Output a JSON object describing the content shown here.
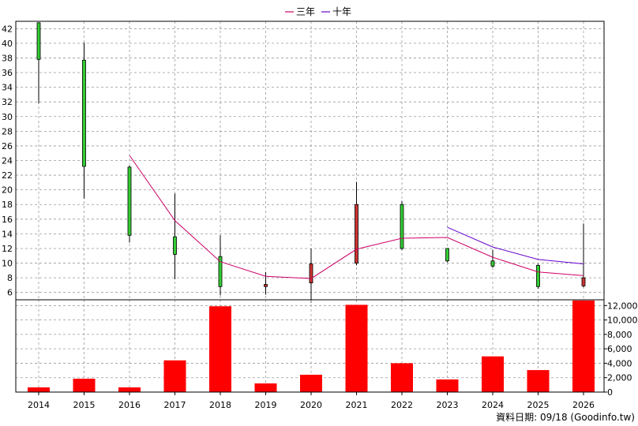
{
  "chart_data": [
    {
      "type": "candlestick",
      "legend": [
        {
          "label": "三年",
          "color": "#cc0066"
        },
        {
          "label": "十年",
          "color": "#6600cc"
        }
      ],
      "legend_position": "top-center",
      "categories": [
        "2014",
        "2015",
        "2016",
        "2017",
        "2018",
        "2019",
        "2020",
        "2021",
        "2022",
        "2023",
        "2024",
        "2025",
        "2026"
      ],
      "ylim": [
        5,
        43
      ],
      "yticks": [
        6,
        8,
        10,
        12,
        14,
        16,
        18,
        20,
        22,
        24,
        26,
        28,
        30,
        32,
        34,
        36,
        38,
        40,
        42
      ],
      "grid": true,
      "up_color": "#cc3333",
      "down_color": "#33cc33",
      "candles": [
        {
          "year": "2014",
          "open": 42.8,
          "close": 37.8,
          "high": 42.8,
          "low": 31.8
        },
        {
          "year": "2015",
          "open": 37.7,
          "close": 23.2,
          "high": 40.1,
          "low": 18.8
        },
        {
          "year": "2016",
          "open": 23.1,
          "close": 13.8,
          "high": 23.3,
          "low": 12.8
        },
        {
          "year": "2017",
          "open": 13.6,
          "close": 11.2,
          "high": 19.5,
          "low": 7.8
        },
        {
          "year": "2018",
          "open": 10.9,
          "close": 6.8,
          "high": 13.8,
          "low": 5.6
        },
        {
          "year": "2019",
          "open": 6.8,
          "close": 7.1,
          "high": 8.8,
          "low": 5.7
        },
        {
          "year": "2020",
          "open": 7.3,
          "close": 9.9,
          "high": 12.0,
          "low": 4.6
        },
        {
          "year": "2021",
          "open": 10.0,
          "close": 18.0,
          "high": 21.1,
          "low": 9.7
        },
        {
          "year": "2022",
          "open": 18.0,
          "close": 12.0,
          "high": 18.5,
          "low": 11.8
        },
        {
          "year": "2023",
          "open": 12.0,
          "close": 10.3,
          "high": 12.0,
          "low": 10.1
        },
        {
          "year": "2024",
          "open": 10.3,
          "close": 9.6,
          "high": 11.8,
          "low": 9.4
        },
        {
          "year": "2025",
          "open": 9.7,
          "close": 6.8,
          "high": 9.9,
          "low": 6.5
        },
        {
          "year": "2026",
          "open": 6.9,
          "close": 8.0,
          "high": 15.4,
          "low": 6.7
        }
      ],
      "series": [
        {
          "name": "三年",
          "color": "#cc0066",
          "x": [
            "2016",
            "2017",
            "2018",
            "2019",
            "2020",
            "2021",
            "2022",
            "2023",
            "2024",
            "2025",
            "2026"
          ],
          "values": [
            24.7,
            15.8,
            10.2,
            8.2,
            7.9,
            11.9,
            13.4,
            13.5,
            10.8,
            8.8,
            8.3
          ]
        },
        {
          "name": "十年",
          "color": "#6600cc",
          "x": [
            "2023",
            "2024",
            "2025",
            "2026"
          ],
          "values": [
            14.9,
            12.2,
            10.5,
            9.9
          ]
        }
      ]
    },
    {
      "type": "bar",
      "categories": [
        "2014",
        "2015",
        "2016",
        "2017",
        "2018",
        "2019",
        "2020",
        "2021",
        "2022",
        "2023",
        "2024",
        "2025",
        "2026"
      ],
      "values": [
        650,
        1850,
        650,
        4400,
        11900,
        1200,
        2400,
        12100,
        4000,
        1750,
        4950,
        3050,
        12700
      ],
      "ylim": [
        0,
        12800
      ],
      "yticks": [
        0,
        2000,
        4000,
        6000,
        8000,
        10000,
        12000
      ],
      "ytick_labels": [
        "0",
        "2,000",
        "4,000",
        "6,000",
        "8,000",
        "10,000",
        "12,000"
      ],
      "color": "#ff0000",
      "grid": true
    }
  ],
  "source_label": "資料日期: 09/18  (Goodinfo.tw)"
}
